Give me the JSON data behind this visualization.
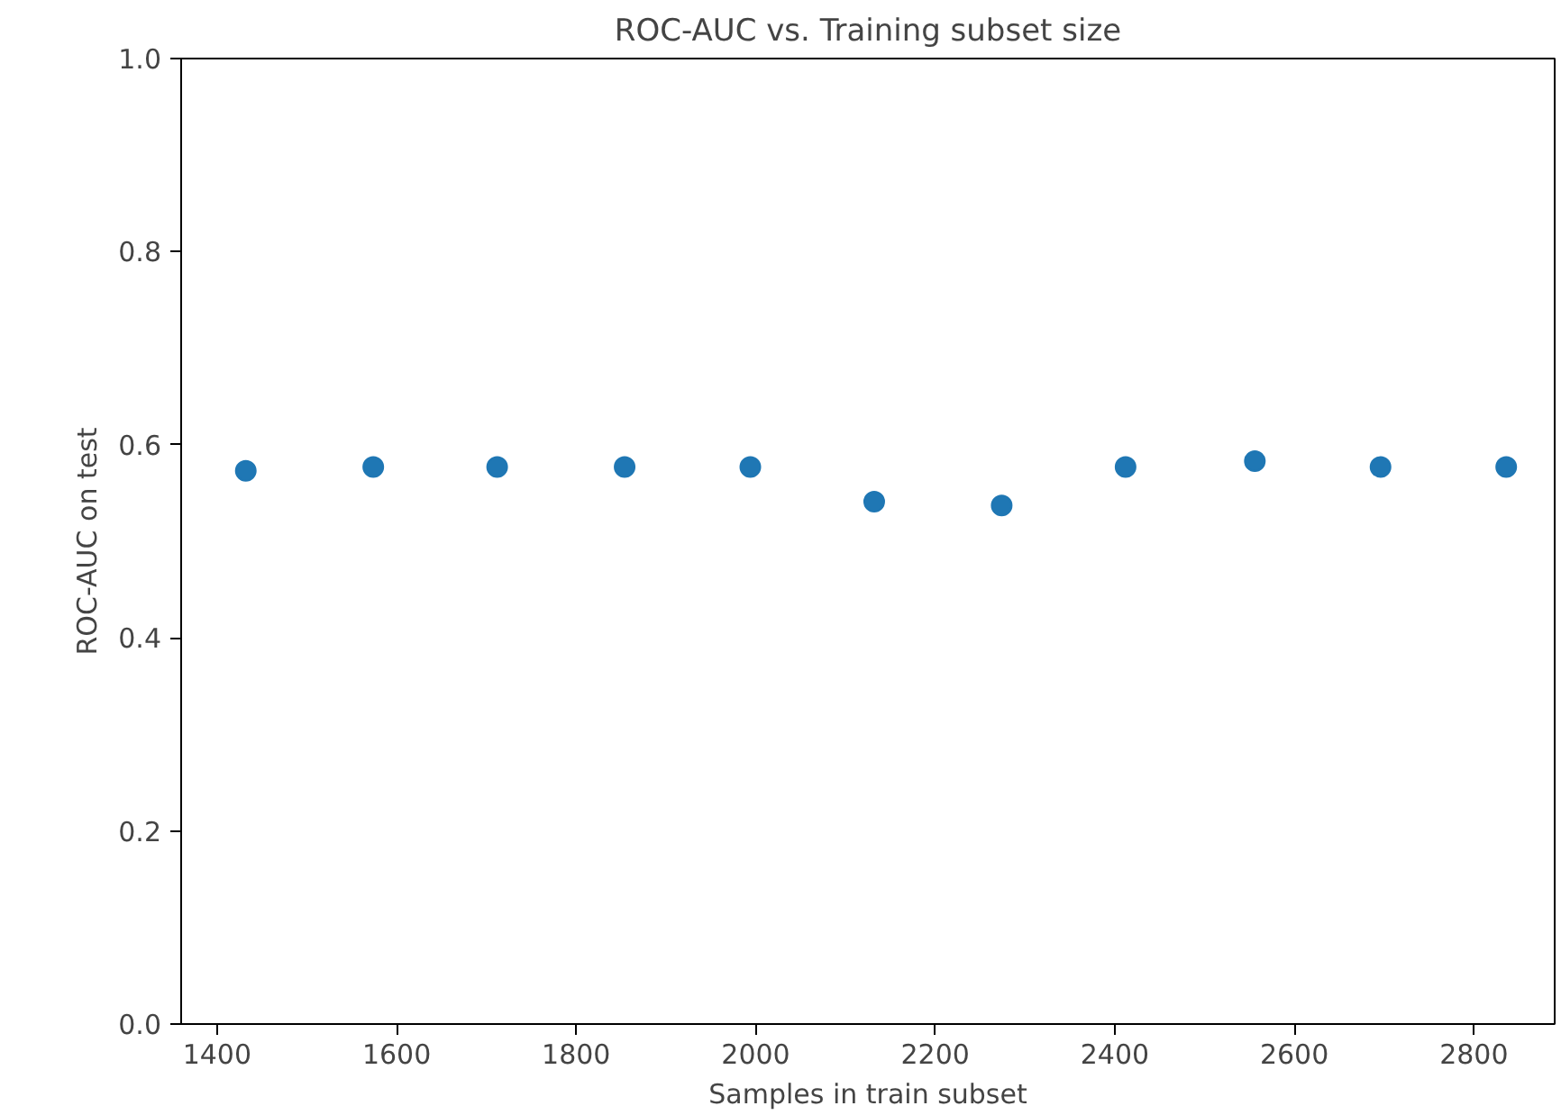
{
  "chart_data": {
    "type": "scatter",
    "title": "ROC-AUC vs. Training subset size",
    "xlabel": "Samples in train subset",
    "ylabel": "ROC-AUC on test",
    "x": [
      1432,
      1574,
      1712,
      1854,
      1994,
      2132,
      2274,
      2412,
      2556,
      2696,
      2836
    ],
    "series": [
      {
        "color": "#1f77b4",
        "values": [
          0.573,
          0.577,
          0.577,
          0.577,
          0.577,
          0.541,
          0.537,
          0.577,
          0.583,
          0.577,
          0.577
        ]
      }
    ],
    "xlim": [
      1360,
      2890
    ],
    "ylim": [
      0,
      1
    ],
    "xticks": [
      1400,
      1600,
      1800,
      2000,
      2200,
      2400,
      2600,
      2800
    ],
    "yticks": [
      {
        "value": 0,
        "label": "0.0"
      },
      {
        "value": 0.2,
        "label": "0.2"
      },
      {
        "value": 0.4,
        "label": "0.4"
      },
      {
        "value": 0.6,
        "label": "0.6"
      },
      {
        "value": 0.8,
        "label": "0.8"
      },
      {
        "value": 1,
        "label": "1.0"
      }
    ],
    "grid": false,
    "marker": "circle"
  }
}
